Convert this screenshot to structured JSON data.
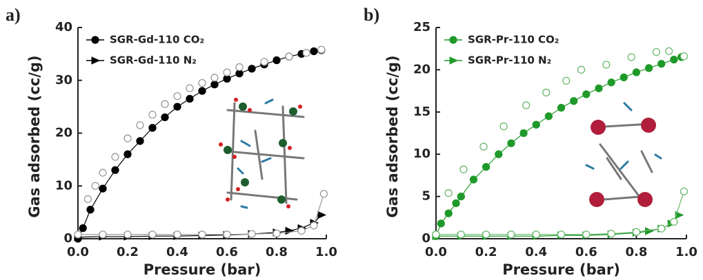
{
  "chart_data": [
    {
      "type": "scatter",
      "label": "a)",
      "xlabel": "Pressure (bar)",
      "ylabel": "Gas adsorbed (cc/g)",
      "xlim": [
        0,
        1
      ],
      "ylim": [
        0,
        40
      ],
      "xticks": [
        {
          "value": 0,
          "label": "0.0"
        },
        0.2,
        0.4,
        0.6,
        0.8,
        {
          "value": 1,
          "label": "1.0"
        }
      ],
      "yticks": [
        0,
        10,
        20,
        30,
        40
      ],
      "series": [
        {
          "name": "SGR-Gd-110 CO₂",
          "color": "#000000",
          "marker": "circle",
          "line": true,
          "x": [
            0.0,
            0.02,
            0.05,
            0.1,
            0.15,
            0.2,
            0.25,
            0.3,
            0.35,
            0.4,
            0.45,
            0.5,
            0.55,
            0.6,
            0.65,
            0.7,
            0.75,
            0.8,
            0.85,
            0.9,
            0.95,
            0.98
          ],
          "values": [
            0,
            2,
            5.5,
            9.5,
            13,
            16,
            18.5,
            21,
            23,
            25,
            26.5,
            28,
            29.2,
            30.3,
            31.3,
            32.2,
            33,
            33.8,
            34.5,
            35,
            35.5,
            35.7
          ]
        },
        {
          "name": "SGR-Gd-110 N₂",
          "color": "#000000",
          "marker": "triangle",
          "line": true,
          "x": [
            0.0,
            0.1,
            0.2,
            0.3,
            0.4,
            0.5,
            0.6,
            0.7,
            0.8,
            0.85,
            0.9,
            0.95,
            0.98
          ],
          "values": [
            0.3,
            0.4,
            0.4,
            0.5,
            0.5,
            0.6,
            0.7,
            0.9,
            1.2,
            1.5,
            2,
            3,
            4.5
          ]
        },
        {
          "color": "#999999",
          "marker": "open-circle",
          "line": false,
          "x": [
            0.04,
            0.07,
            0.1,
            0.15,
            0.2,
            0.25,
            0.3,
            0.35,
            0.4,
            0.45,
            0.5,
            0.55,
            0.6,
            0.65,
            0.75,
            0.85,
            0.92,
            0.98
          ],
          "values": [
            7.5,
            10,
            12.5,
            15.5,
            19,
            21.5,
            23.5,
            25.5,
            27,
            28.5,
            29.5,
            30.5,
            31.5,
            32.5,
            33.5,
            34.5,
            35.2,
            35.8
          ]
        },
        {
          "color": "#999999",
          "marker": "open-circle",
          "line": true,
          "x": [
            0.0,
            0.1,
            0.2,
            0.3,
            0.4,
            0.5,
            0.6,
            0.7,
            0.8,
            0.9,
            0.95,
            0.99
          ],
          "values": [
            0.8,
            0.8,
            0.8,
            0.8,
            0.8,
            0.8,
            0.8,
            0.9,
            1,
            1.5,
            2.5,
            8.5
          ]
        }
      ]
    },
    {
      "type": "scatter",
      "label": "b)",
      "xlabel": "Pressure (bar)",
      "ylabel": "Gas adsorbed (cc/g)",
      "xlim": [
        0,
        1
      ],
      "ylim": [
        0,
        25
      ],
      "xticks": [
        {
          "value": 0,
          "label": "0.0"
        },
        0.2,
        0.4,
        0.6,
        0.8,
        {
          "value": 1,
          "label": "1.0"
        }
      ],
      "yticks": [
        0,
        5,
        10,
        15,
        20,
        25
      ],
      "series": [
        {
          "name": "SGR-Pr-110 CO₂",
          "color": "#1f9a2a",
          "marker": "circle",
          "line": true,
          "x": [
            0.0,
            0.02,
            0.05,
            0.08,
            0.1,
            0.15,
            0.2,
            0.25,
            0.3,
            0.35,
            0.4,
            0.45,
            0.5,
            0.55,
            0.6,
            0.65,
            0.7,
            0.75,
            0.8,
            0.85,
            0.9,
            0.95,
            0.98
          ],
          "values": [
            0.3,
            1.8,
            3,
            4.2,
            5,
            7,
            8.5,
            10,
            11.3,
            12.5,
            13.5,
            14.5,
            15.5,
            16.3,
            17.1,
            17.8,
            18.5,
            19.1,
            19.7,
            20.2,
            20.7,
            21.2,
            21.5
          ]
        },
        {
          "name": "SGR-Pr-110 N₂",
          "color": "#1f9a2a",
          "marker": "triangle",
          "line": true,
          "x": [
            0.0,
            0.1,
            0.2,
            0.3,
            0.4,
            0.5,
            0.6,
            0.7,
            0.8,
            0.85,
            0.9,
            0.94,
            0.97
          ],
          "values": [
            0.3,
            0.3,
            0.3,
            0.3,
            0.3,
            0.4,
            0.4,
            0.5,
            0.7,
            0.9,
            1.2,
            1.8,
            2.8
          ]
        },
        {
          "color": "#6cb86f",
          "marker": "open-circle",
          "line": false,
          "x": [
            0.05,
            0.11,
            0.19,
            0.27,
            0.36,
            0.44,
            0.52,
            0.58,
            0.68,
            0.78,
            0.88,
            0.93,
            0.99
          ],
          "values": [
            5.4,
            8.2,
            10.9,
            13.3,
            15.8,
            17.3,
            18.7,
            20,
            20.6,
            21.5,
            22.1,
            22.2,
            21.6
          ]
        },
        {
          "color": "#6cb86f",
          "marker": "open-circle",
          "line": true,
          "x": [
            0.0,
            0.1,
            0.2,
            0.3,
            0.4,
            0.5,
            0.6,
            0.7,
            0.8,
            0.9,
            0.95,
            0.99
          ],
          "values": [
            0.5,
            0.5,
            0.5,
            0.5,
            0.5,
            0.5,
            0.5,
            0.6,
            0.8,
            1.2,
            2,
            5.6
          ]
        }
      ]
    }
  ]
}
